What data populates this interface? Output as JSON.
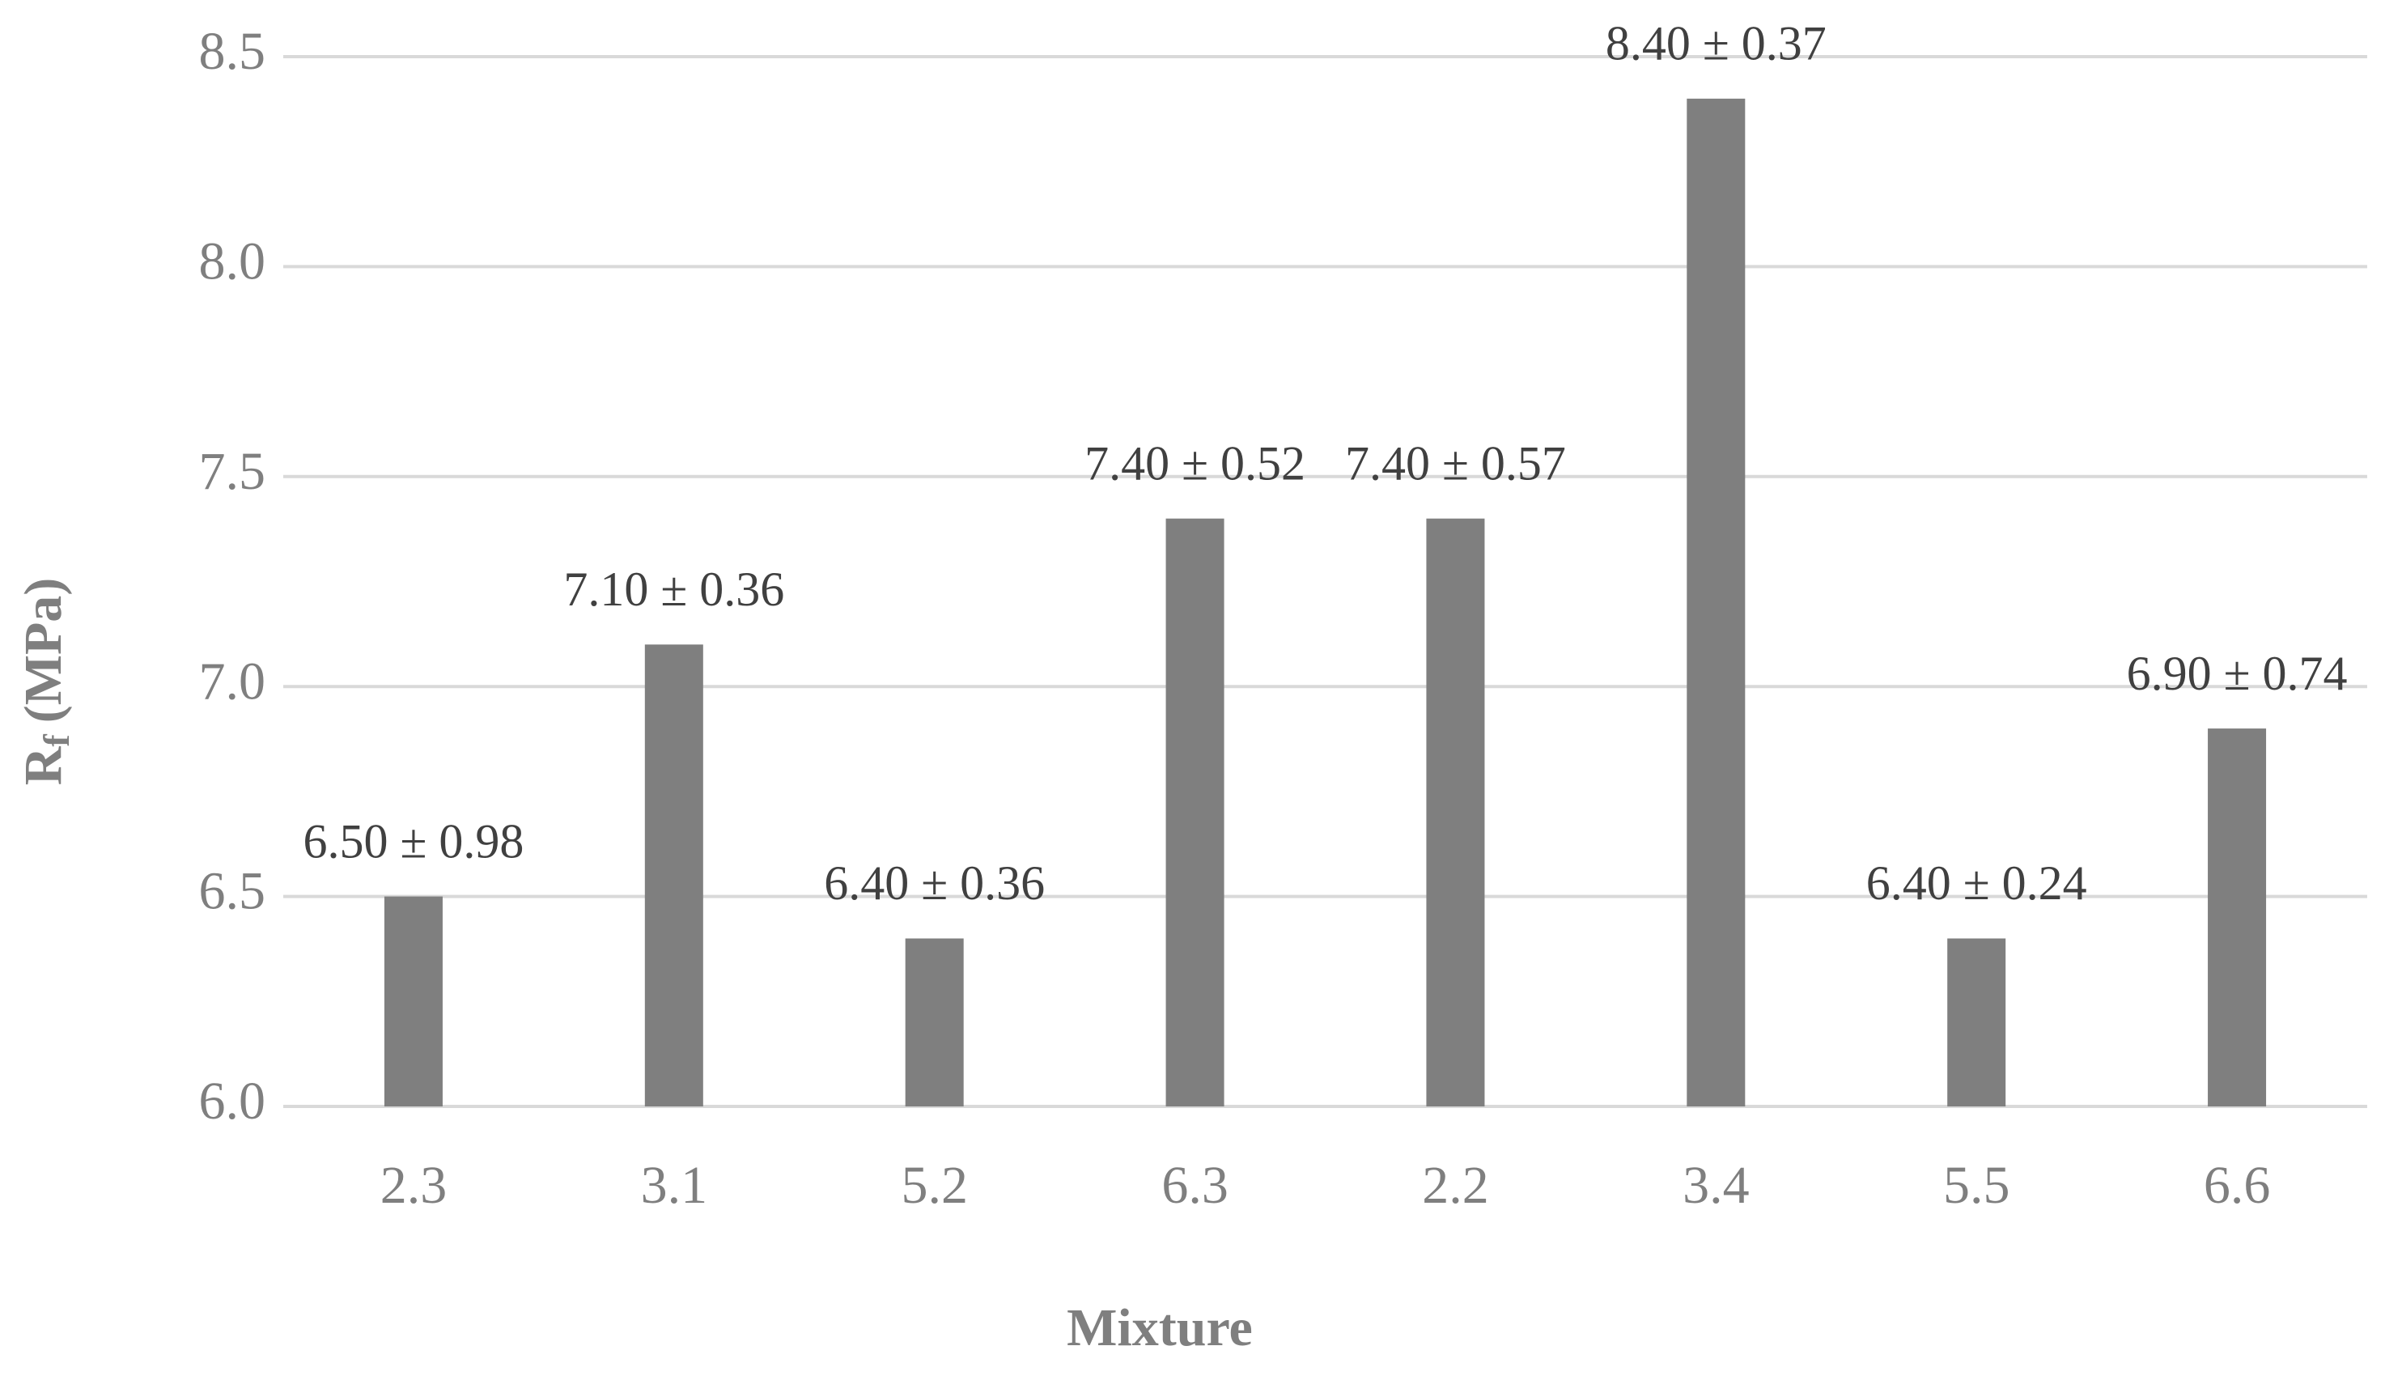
{
  "chart_data": {
    "type": "bar",
    "x_label": "Mixture",
    "y_label": "R",
    "y_label_subscript": "f",
    "y_label_unit": "(MPa)",
    "categories": [
      "2.3",
      "3.1",
      "5.2",
      "6.3",
      "2.2",
      "3.4",
      "5.5",
      "6.6"
    ],
    "values": [
      6.5,
      7.1,
      6.4,
      7.4,
      7.4,
      8.4,
      6.4,
      6.9
    ],
    "value_labels": [
      "6.50 ± 0.98",
      "7.10 ± 0.36",
      "6.40 ± 0.36",
      "7.40 ± 0.52",
      "7.40 ± 0.57",
      "8.40 ± 0.37",
      "6.40 ± 0.24",
      "6.90 ± 0.74"
    ],
    "color": "#7f7f7f",
    "ylim": [
      6,
      8.5
    ],
    "yticks": [
      {
        "value": 6,
        "label": "6.0"
      },
      6.5,
      {
        "value": 7,
        "label": "7.0"
      },
      7.5,
      {
        "value": 8,
        "label": "8.0"
      },
      8.5
    ],
    "grid": true
  }
}
